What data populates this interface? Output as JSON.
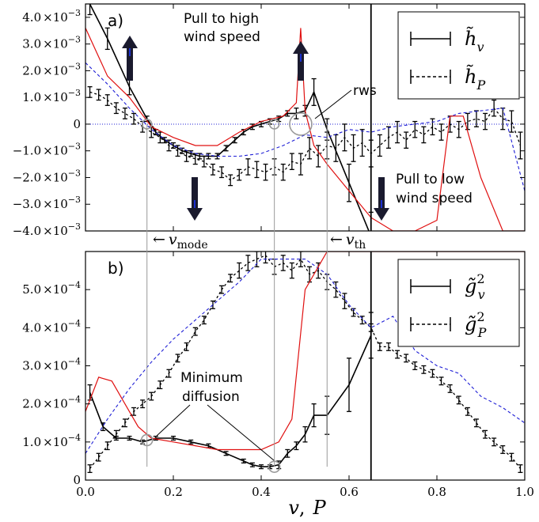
{
  "chart_data": [
    {
      "panel": "a)",
      "type": "line",
      "ylim": [
        -0.004,
        0.0045
      ],
      "xlim": [
        0.0,
        1.0
      ],
      "yticks": [
        {
          "v": 0.004,
          "m": "4.0",
          "e": "×10",
          "p": "−3"
        },
        {
          "v": 0.003,
          "m": "3.0",
          "e": "×10",
          "p": "−3"
        },
        {
          "v": 0.002,
          "m": "2.0",
          "e": "×10",
          "p": "−3"
        },
        {
          "v": 0.001,
          "m": "1.0",
          "e": "×10",
          "p": "−3"
        },
        {
          "v": 0.0,
          "m": "0",
          "e": "",
          "p": ""
        },
        {
          "v": -0.001,
          "m": "−1.0",
          "e": "×10",
          "p": "−3"
        },
        {
          "v": -0.002,
          "m": "−2.0",
          "e": "×10",
          "p": "−3"
        },
        {
          "v": -0.003,
          "m": "−3.0",
          "e": "×10",
          "p": "−3"
        },
        {
          "v": -0.004,
          "m": "−4.0",
          "e": "×10",
          "p": "−3"
        }
      ],
      "legend": [
        {
          "base": "h̃",
          "sub": "v",
          "style": "solid"
        },
        {
          "base": "h̃",
          "sub": "P",
          "style": "dashed"
        }
      ],
      "series": [
        {
          "name": "h̃_v",
          "style": "solid-errorbar",
          "x": [
            0.01,
            0.05,
            0.1,
            0.14,
            0.16,
            0.18,
            0.2,
            0.22,
            0.24,
            0.26,
            0.28,
            0.3,
            0.32,
            0.34,
            0.36,
            0.38,
            0.4,
            0.42,
            0.44,
            0.46,
            0.48,
            0.5,
            0.52,
            0.55,
            0.6,
            0.65
          ],
          "y": [
            0.0045,
            0.0032,
            0.0014,
            0.0002,
            -0.0003,
            -0.0006,
            -0.0008,
            -0.001,
            -0.0011,
            -0.0012,
            -0.0012,
            -0.0012,
            -0.0009,
            -0.0006,
            -0.0003,
            -0.0001,
            0.0,
            0.0001,
            0.0002,
            0.0004,
            0.0004,
            0.0005,
            0.0012,
            -0.0002,
            -0.0022,
            -0.0042
          ],
          "err": [
            0.0004,
            0.0004,
            0.0003,
            0.0001,
            0.0001,
            0.0001,
            0.0001,
            0.0001,
            0.0001,
            0.0001,
            0.0001,
            0.0001,
            0.0001,
            0.0001,
            0.0001,
            0.0001,
            0.0001,
            0.0001,
            0.0001,
            0.0001,
            0.0002,
            0.0002,
            0.0005,
            0.0004,
            0.0007,
            0.0009
          ]
        },
        {
          "name": "h̃_P",
          "style": "dashed-errorbar",
          "x": [
            0.01,
            0.03,
            0.05,
            0.07,
            0.09,
            0.11,
            0.13,
            0.15,
            0.17,
            0.19,
            0.21,
            0.23,
            0.25,
            0.27,
            0.29,
            0.31,
            0.33,
            0.35,
            0.37,
            0.39,
            0.41,
            0.43,
            0.45,
            0.47,
            0.49,
            0.51,
            0.53,
            0.55,
            0.57,
            0.59,
            0.61,
            0.63,
            0.65,
            0.67,
            0.69,
            0.71,
            0.73,
            0.75,
            0.77,
            0.79,
            0.81,
            0.83,
            0.85,
            0.87,
            0.89,
            0.91,
            0.93,
            0.95,
            0.97,
            0.99
          ],
          "y": [
            0.0012,
            0.0011,
            0.0009,
            0.0006,
            0.0004,
            0.0002,
            -0.0001,
            -0.0003,
            -0.0005,
            -0.0008,
            -0.001,
            -0.0012,
            -0.0013,
            -0.0014,
            -0.0017,
            -0.0018,
            -0.0021,
            -0.0019,
            -0.0016,
            -0.0017,
            -0.0018,
            -0.0016,
            -0.0018,
            -0.0014,
            -0.0015,
            -0.0009,
            -0.0012,
            -0.0008,
            -0.0009,
            -0.0005,
            -0.0009,
            -0.0007,
            -0.0011,
            -0.0008,
            -0.0005,
            -0.0003,
            -0.0006,
            -0.0002,
            -0.0004,
            -0.0001,
            -0.0003,
            0.0,
            -0.0002,
            0.0001,
            0.0002,
            0.0001,
            0.0006,
            0.0002,
            0.0001,
            -0.0008
          ],
          "err": [
            0.0002,
            0.0002,
            0.0002,
            0.0002,
            0.0002,
            0.0002,
            0.0002,
            0.0002,
            0.0002,
            0.0002,
            0.0002,
            0.0002,
            0.0002,
            0.0002,
            0.0002,
            0.0002,
            0.0002,
            0.0002,
            0.0003,
            0.0003,
            0.0003,
            0.0003,
            0.0003,
            0.0003,
            0.0004,
            0.0004,
            0.0004,
            0.0005,
            0.0005,
            0.0005,
            0.0005,
            0.0005,
            0.0005,
            0.0004,
            0.0004,
            0.0004,
            0.0003,
            0.0003,
            0.0003,
            0.0003,
            0.0003,
            0.0003,
            0.0003,
            0.0003,
            0.0003,
            0.0003,
            0.0003,
            0.0004,
            0.0004,
            0.0005
          ]
        },
        {
          "name": "",
          "style": "blue-dashed",
          "x": [
            0.0,
            0.05,
            0.1,
            0.15,
            0.2,
            0.25,
            0.3,
            0.35,
            0.4,
            0.45,
            0.5,
            0.55,
            0.6,
            0.65,
            0.7,
            0.75,
            0.8,
            0.85,
            0.9,
            0.95,
            1.0
          ],
          "y": [
            0.0023,
            0.0015,
            0.0006,
            -0.0002,
            -0.0008,
            -0.0011,
            -0.0012,
            -0.0012,
            -0.0011,
            -0.0008,
            -0.0004,
            -0.0005,
            -0.0002,
            -0.0003,
            -0.0001,
            0.0,
            0.0001,
            0.0004,
            0.0005,
            0.0006,
            -0.0025
          ]
        },
        {
          "name": "",
          "style": "red",
          "x": [
            0.0,
            0.05,
            0.1,
            0.15,
            0.2,
            0.25,
            0.3,
            0.35,
            0.4,
            0.45,
            0.48,
            0.49,
            0.5,
            0.52,
            0.55,
            0.6,
            0.65,
            0.7,
            0.75,
            0.8,
            0.83,
            0.86,
            0.9,
            0.95,
            1.0
          ],
          "y": [
            0.0036,
            0.0018,
            0.001,
            -0.0001,
            -0.0005,
            -0.0008,
            -0.0008,
            -0.0003,
            0.0001,
            0.0003,
            0.0008,
            0.0036,
            0.0005,
            -0.0008,
            -0.0015,
            -0.0025,
            -0.0035,
            -0.004,
            -0.004,
            -0.0036,
            0.0003,
            0.0003,
            -0.002,
            -0.004,
            -0.004
          ]
        }
      ],
      "annotations": {
        "pull_high_1": "Pull to high",
        "pull_high_2": "wind speed",
        "pull_low_1": "Pull to low",
        "pull_low_2": "wind speed",
        "rws": "rws"
      }
    },
    {
      "panel": "b)",
      "type": "line",
      "ylim": [
        0.0,
        0.0006
      ],
      "xlim": [
        0.0,
        1.0
      ],
      "yticks": [
        {
          "v": 0.0005,
          "m": "5.0",
          "e": "×10",
          "p": "−4"
        },
        {
          "v": 0.0004,
          "m": "4.0",
          "e": "×10",
          "p": "−4"
        },
        {
          "v": 0.0003,
          "m": "3.0",
          "e": "×10",
          "p": "−4"
        },
        {
          "v": 0.0002,
          "m": "2.0",
          "e": "×10",
          "p": "−4"
        },
        {
          "v": 0.0001,
          "m": "1.0",
          "e": "×10",
          "p": "−4"
        },
        {
          "v": 0.0,
          "m": "0",
          "e": "",
          "p": ""
        }
      ],
      "xticks": [
        "0.0",
        "0.2",
        "0.4",
        "0.6",
        "0.8",
        "1.0"
      ],
      "xticks_values": [
        0.0,
        0.2,
        0.4,
        0.6,
        0.8,
        1.0
      ],
      "legend": [
        {
          "base": "g̃",
          "sub": "v",
          "sup": "2",
          "style": "solid"
        },
        {
          "base": "g̃",
          "sub": "P",
          "sup": "2",
          "style": "dashed"
        }
      ],
      "series": [
        {
          "name": "g̃_v²",
          "style": "solid-errorbar",
          "x": [
            0.01,
            0.04,
            0.07,
            0.1,
            0.13,
            0.16,
            0.2,
            0.24,
            0.28,
            0.32,
            0.36,
            0.38,
            0.4,
            0.42,
            0.44,
            0.46,
            0.48,
            0.5,
            0.52,
            0.55,
            0.6,
            0.65
          ],
          "y": [
            0.00023,
            0.00014,
            0.00011,
            0.00011,
            0.0001,
            0.00011,
            0.00011,
            0.0001,
            9e-05,
            7e-05,
            5e-05,
            4e-05,
            3.5e-05,
            3.5e-05,
            4e-05,
            7e-05,
            9e-05,
            0.00012,
            0.00017,
            0.00017,
            0.00025,
            0.00038
          ],
          "err": [
            2e-05,
            1e-05,
            5e-06,
            5e-06,
            5e-06,
            5e-06,
            5e-06,
            5e-06,
            5e-06,
            5e-06,
            5e-06,
            5e-06,
            5e-06,
            5e-06,
            1e-05,
            1e-05,
            1e-05,
            2e-05,
            3e-05,
            5e-05,
            7e-05,
            6e-05
          ]
        },
        {
          "name": "g̃_P²",
          "style": "dashed-errorbar",
          "x": [
            0.01,
            0.03,
            0.05,
            0.07,
            0.09,
            0.11,
            0.13,
            0.15,
            0.17,
            0.19,
            0.21,
            0.23,
            0.25,
            0.27,
            0.29,
            0.31,
            0.33,
            0.35,
            0.37,
            0.39,
            0.41,
            0.43,
            0.45,
            0.47,
            0.49,
            0.51,
            0.53,
            0.55,
            0.57,
            0.59,
            0.61,
            0.63,
            0.65,
            0.67,
            0.69,
            0.71,
            0.73,
            0.75,
            0.77,
            0.79,
            0.81,
            0.83,
            0.85,
            0.87,
            0.89,
            0.91,
            0.93,
            0.95,
            0.97,
            0.99
          ],
          "y": [
            3e-05,
            6e-05,
            9e-05,
            0.00012,
            0.00015,
            0.00018,
            0.0002,
            0.00022,
            0.00025,
            0.00028,
            0.00032,
            0.00035,
            0.00039,
            0.00042,
            0.00046,
            0.0005,
            0.00053,
            0.00055,
            0.00057,
            0.00058,
            0.00059,
            0.00056,
            0.00057,
            0.00055,
            0.00058,
            0.00054,
            0.00055,
            0.00052,
            0.0005,
            0.00047,
            0.00044,
            0.00042,
            0.0004,
            0.00035,
            0.00035,
            0.00033,
            0.00032,
            0.0003,
            0.00029,
            0.00028,
            0.00026,
            0.00024,
            0.00021,
            0.00018,
            0.00015,
            0.00012,
            0.0001,
            8e-05,
            6e-05,
            3e-05
          ],
          "err": [
            1e-05,
            1e-05,
            1e-05,
            1e-05,
            1e-05,
            1e-05,
            1e-05,
            1e-05,
            1e-05,
            1e-05,
            1e-05,
            1e-05,
            1e-05,
            1e-05,
            1e-05,
            1e-05,
            1e-05,
            2e-05,
            2e-05,
            2e-05,
            2e-05,
            2e-05,
            2e-05,
            2e-05,
            2e-05,
            2e-05,
            2e-05,
            2e-05,
            2e-05,
            2e-05,
            1e-05,
            1e-05,
            1e-05,
            1e-05,
            1e-05,
            1e-05,
            1e-05,
            1e-05,
            1e-05,
            1e-05,
            1e-05,
            1e-05,
            1e-05,
            1e-05,
            1e-05,
            1e-05,
            1e-05,
            1e-05,
            1e-05,
            1e-05
          ]
        },
        {
          "name": "",
          "style": "blue-dashed",
          "x": [
            0.0,
            0.05,
            0.1,
            0.15,
            0.2,
            0.25,
            0.3,
            0.35,
            0.4,
            0.45,
            0.5,
            0.55,
            0.6,
            0.65,
            0.7,
            0.75,
            0.8,
            0.85,
            0.9,
            0.95,
            1.0
          ],
          "y": [
            7e-05,
            0.00016,
            0.00024,
            0.00031,
            0.00037,
            0.00042,
            0.00047,
            0.00052,
            0.00058,
            0.00058,
            0.00058,
            0.00054,
            0.00046,
            0.0004,
            0.00043,
            0.00034,
            0.0003,
            0.00028,
            0.00022,
            0.00019,
            0.00015
          ]
        },
        {
          "name": "",
          "style": "red",
          "x": [
            0.0,
            0.03,
            0.06,
            0.09,
            0.12,
            0.15,
            0.2,
            0.25,
            0.3,
            0.35,
            0.4,
            0.44,
            0.47,
            0.5,
            0.55,
            0.6,
            0.65,
            0.7,
            0.75,
            0.8,
            0.9,
            1.0
          ],
          "y": [
            0.00018,
            0.00027,
            0.00026,
            0.0002,
            0.00014,
            0.00011,
            0.0001,
            9e-05,
            8e-05,
            8e-05,
            8e-05,
            0.0001,
            0.00016,
            0.0005,
            0.0006,
            0.0006,
            0.0006,
            0.0006,
            0.0006,
            0.0006,
            0.0006,
            0.0006
          ]
        }
      ],
      "annotations": {
        "min_diff_1": "Minimum",
        "min_diff_2": "diffusion"
      }
    }
  ],
  "markers": {
    "v_mode_x": 0.14,
    "v_mode_label": "mode",
    "v_th_x": 0.55,
    "v_th_label": "th",
    "v_mode_arrow": "←",
    "v_th_arrow": "←",
    "v_symbol": "v",
    "v_low_x": 0.43,
    "v_vline_x": 0.65
  },
  "xlabel": {
    "v": "v",
    "sep": ",",
    "p": "P"
  },
  "colors": {
    "black": "#000000",
    "blue": "#1f1fd6",
    "red": "#e01010",
    "gray": "#9a9a9a",
    "arrow": "#1a1a2e",
    "arrow_tip": "#1b2fcf"
  }
}
